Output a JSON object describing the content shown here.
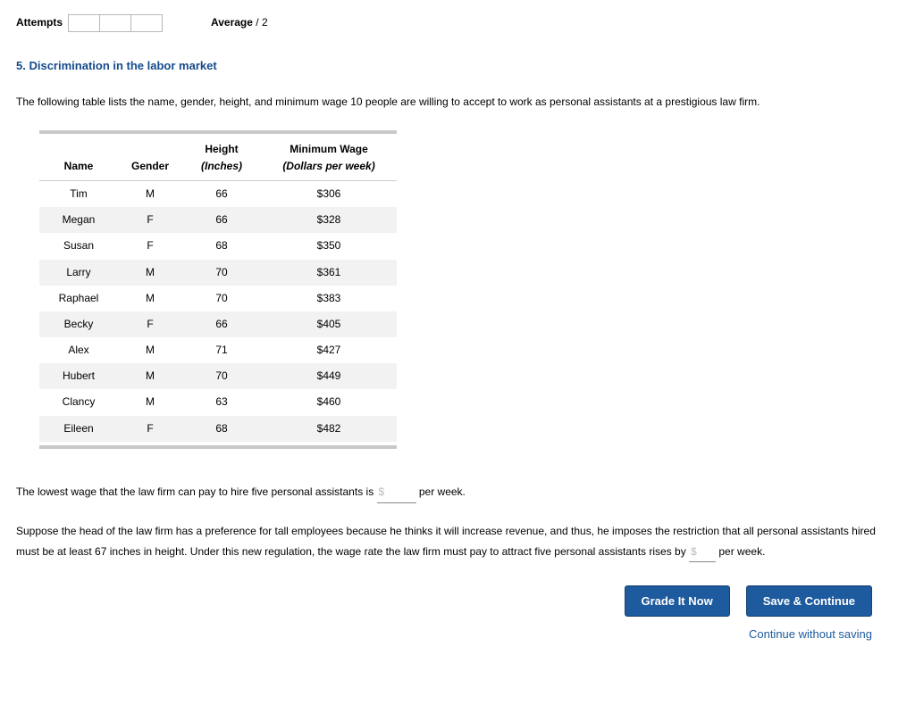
{
  "attempts": {
    "label": "Attempts",
    "boxes": 3
  },
  "average": {
    "label": "Average",
    "denominator": "/ 2"
  },
  "question": {
    "number": "5.",
    "title": "Discrimination in the labor market",
    "intro": "The following table lists the name, gender, height, and minimum wage 10 people are willing to accept to work as personal assistants at a prestigious law firm."
  },
  "table": {
    "headers_top": [
      "",
      "",
      "Height",
      "Minimum Wage"
    ],
    "headers_bottom": [
      "Name",
      "Gender",
      "(Inches)",
      "(Dollars per week)"
    ],
    "col_widths": [
      "22%",
      "18%",
      "22%",
      "38%"
    ],
    "rows": [
      [
        "Tim",
        "M",
        "66",
        "$306"
      ],
      [
        "Megan",
        "F",
        "66",
        "$328"
      ],
      [
        "Susan",
        "F",
        "68",
        "$350"
      ],
      [
        "Larry",
        "M",
        "70",
        "$361"
      ],
      [
        "Raphael",
        "M",
        "70",
        "$383"
      ],
      [
        "Becky",
        "F",
        "66",
        "$405"
      ],
      [
        "Alex",
        "M",
        "71",
        "$427"
      ],
      [
        "Hubert",
        "M",
        "70",
        "$449"
      ],
      [
        "Clancy",
        "M",
        "63",
        "$460"
      ],
      [
        "Eileen",
        "F",
        "68",
        "$482"
      ]
    ]
  },
  "q1": {
    "lead": "The lowest wage that the law firm can pay to hire five personal assistants is ",
    "hint": "$",
    "trail": " per week."
  },
  "q2": {
    "lead": "Suppose the head of the law firm has a preference for tall employees because he thinks it will increase revenue, and thus, he imposes the restriction that all personal assistants hired must be at least 67 inches in height. Under this new regulation, the wage rate the law firm must pay to attract five personal assistants rises by ",
    "hint": "$",
    "trail": " per week."
  },
  "actions": {
    "grade": "Grade It Now",
    "save": "Save & Continue",
    "skip": "Continue without saving"
  },
  "style": {
    "brand_color": "#1e5a9e",
    "title_color": "#144a8b",
    "rule_color": "#c8c8c8",
    "stripe_color": "#f2f2f2"
  }
}
